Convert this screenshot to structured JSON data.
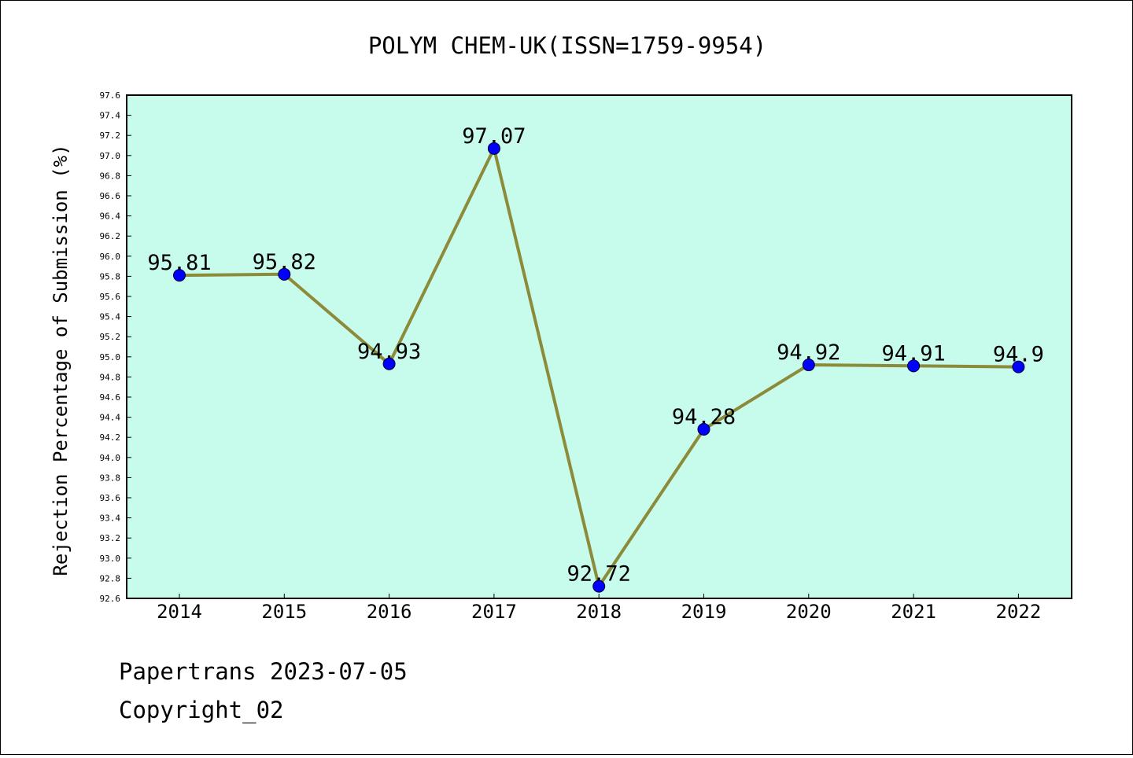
{
  "chart_data": {
    "type": "line",
    "title": "POLYM CHEM-UK(ISSN=1759-9954)",
    "xlabel": "",
    "ylabel": "Rejection Percentage of Submission (%)",
    "categories": [
      "2014",
      "2015",
      "2016",
      "2017",
      "2018",
      "2019",
      "2020",
      "2021",
      "2022"
    ],
    "series": [
      {
        "values": [
          95.81,
          95.82,
          94.93,
          97.07,
          92.72,
          94.28,
          94.92,
          94.91,
          94.9
        ],
        "labels": [
          "95.81",
          "95.82",
          "94.93",
          "97.07",
          "92.72",
          "94.28",
          "94.92",
          "94.91",
          "94.9"
        ]
      }
    ],
    "ylim": [
      92.6,
      97.6
    ],
    "ytick_step": 0.2,
    "grid": false,
    "legend": "none",
    "colors": {
      "plot_background": "#c7fcec",
      "line": "#8b8b3a",
      "marker": "#0000ff"
    }
  },
  "footer": {
    "line1": "Papertrans 2023-07-05",
    "line2": "Copyright_02"
  }
}
